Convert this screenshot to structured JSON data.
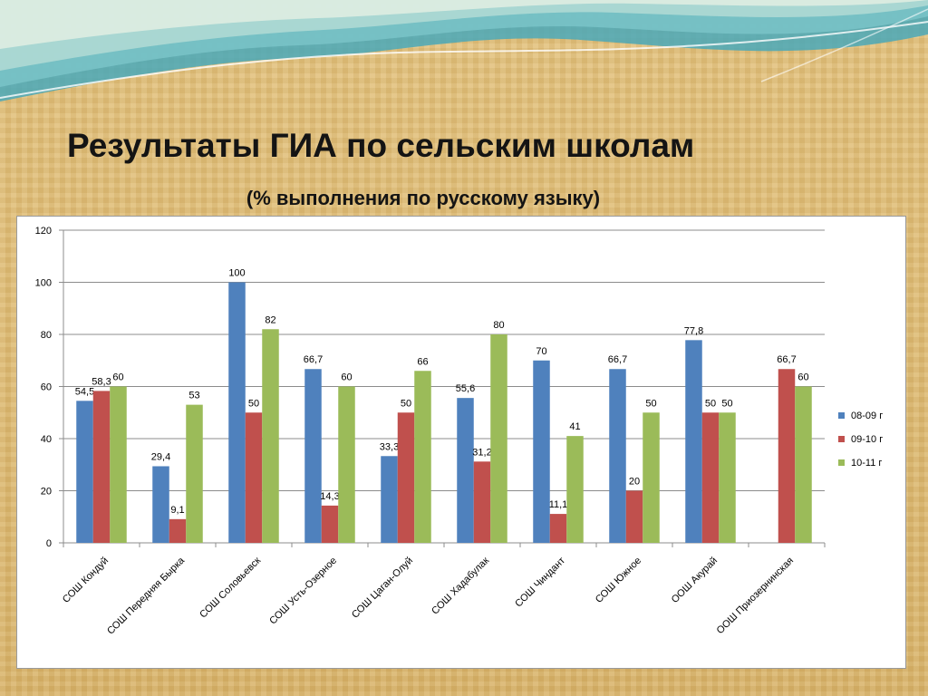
{
  "title": "Результаты ГИА по сельским школам",
  "subtitle": "(% выполнения по русскому языку)",
  "colors": {
    "series_08_09": "#4f81bd",
    "series_09_10": "#c0504d",
    "series_10_11": "#9bbb59"
  },
  "chart_data": {
    "type": "bar",
    "title": "",
    "xlabel": "",
    "ylabel": "",
    "ylim": [
      0,
      120
    ],
    "yticks": [
      0,
      20,
      40,
      60,
      80,
      100,
      120
    ],
    "grid": true,
    "legend_position": "right",
    "categories": [
      "СОШ Кондуй",
      "СОШ Передняя Бырка",
      "СОШ Соловьевск",
      "СОШ Усть-Озерное",
      "СОШ Цаган-Олуй",
      "СОШ Хадабулак",
      "СОШ Чиндант",
      "СОШ Южное",
      "ООШ Акурай",
      "ООШ Приозернинская"
    ],
    "series": [
      {
        "name": "08-09 г",
        "values": [
          54.5,
          29.4,
          100,
          66.7,
          33.3,
          55.6,
          70,
          66.7,
          77.8,
          null
        ],
        "labels": [
          "54,5",
          "29,4",
          "100",
          "66,7",
          "33,3",
          "55,6",
          "70",
          "66,7",
          "77,8",
          ""
        ]
      },
      {
        "name": "09-10 г",
        "values": [
          58.3,
          9.1,
          50,
          14.3,
          50,
          31.2,
          11.1,
          20,
          50,
          66.7
        ],
        "labels": [
          "58,3",
          "9,1",
          "50",
          "14,3",
          "50",
          "31,2",
          "11,1",
          "20",
          "50",
          "66,7"
        ]
      },
      {
        "name": "10-11 г",
        "values": [
          60,
          53,
          82,
          60,
          66,
          80,
          41,
          50,
          50,
          60
        ],
        "labels": [
          "60",
          "53",
          "82",
          "60",
          "66",
          "80",
          "41",
          "50",
          "50",
          "60"
        ]
      }
    ]
  }
}
